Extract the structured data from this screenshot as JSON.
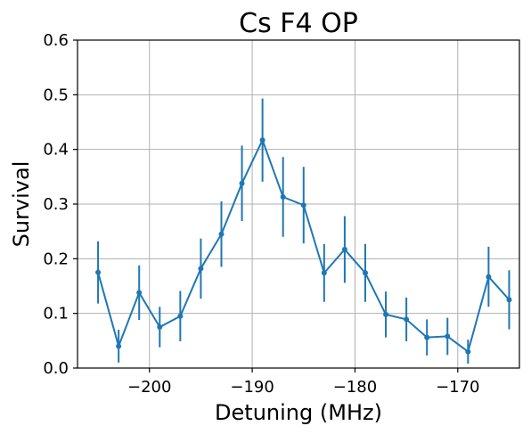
{
  "chart_data": {
    "type": "line",
    "title": "Cs F4 OP",
    "xlabel": "Detuning (MHz)",
    "ylabel": "Survival",
    "xlim": [
      -207,
      -164
    ],
    "ylim": [
      0,
      0.6
    ],
    "xticks": [
      -200,
      -190,
      -180,
      -170
    ],
    "xtick_labels": [
      "−200",
      "−190",
      "−180",
      "−170"
    ],
    "yticks": [
      0.0,
      0.1,
      0.2,
      0.3,
      0.4,
      0.5,
      0.6
    ],
    "ytick_labels": [
      "0.0",
      "0.1",
      "0.2",
      "0.3",
      "0.4",
      "0.5",
      "0.6"
    ],
    "grid": true,
    "color": "#1f77b4",
    "series": [
      {
        "x": [
          -205,
          -203,
          -201,
          -199,
          -197,
          -195,
          -193,
          -191,
          -189,
          -187,
          -185,
          -183,
          -181,
          -179,
          -177,
          -175,
          -173,
          -171,
          -169,
          -167,
          -165
        ],
        "y": [
          0.175,
          0.04,
          0.138,
          0.075,
          0.095,
          0.182,
          0.245,
          0.338,
          0.417,
          0.313,
          0.298,
          0.174,
          0.217,
          0.174,
          0.098,
          0.089,
          0.056,
          0.058,
          0.03,
          0.167,
          0.125
        ],
        "yerr": [
          0.057,
          0.03,
          0.05,
          0.037,
          0.046,
          0.055,
          0.06,
          0.069,
          0.076,
          0.073,
          0.07,
          0.053,
          0.061,
          0.053,
          0.042,
          0.04,
          0.033,
          0.034,
          0.022,
          0.055,
          0.054
        ]
      }
    ]
  }
}
